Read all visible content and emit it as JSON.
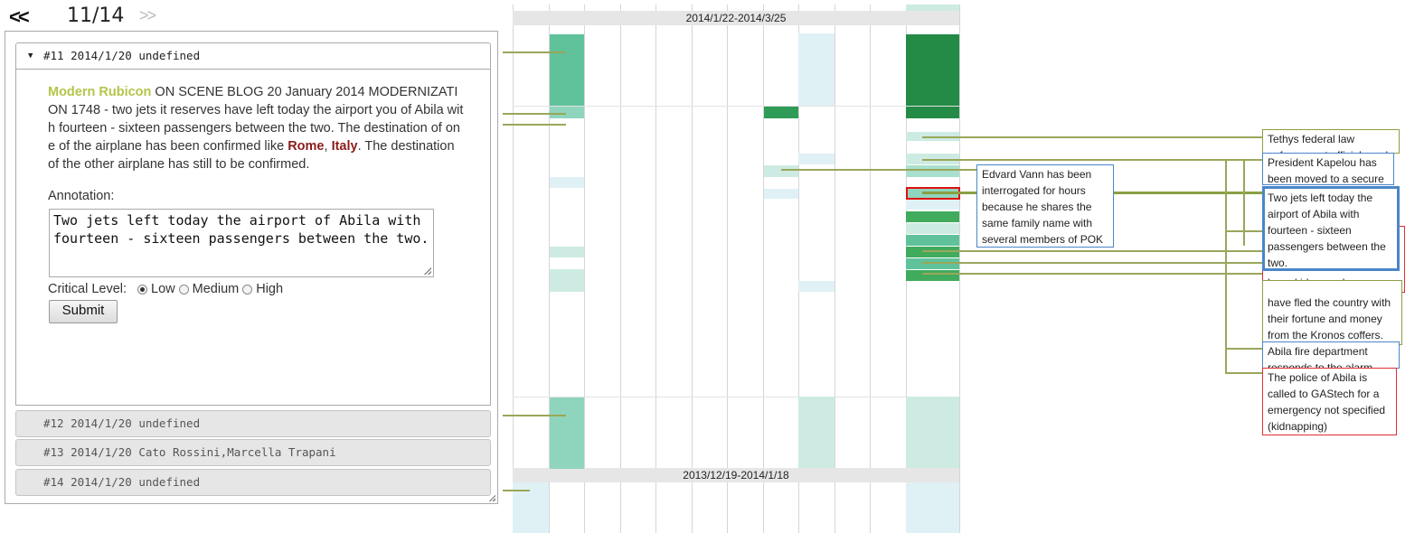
{
  "nav": {
    "prev": "<<",
    "page": "11/14",
    "next": ">>"
  },
  "accordion": {
    "active": {
      "header": "#11 2014/1/20 undefined"
    },
    "closed": [
      {
        "header": "#12 2014/1/20 undefined"
      },
      {
        "header": "#13 2014/1/20 Cato Rossini,Marcella Trapani"
      },
      {
        "header": "#14 2014/1/20 undefined"
      }
    ]
  },
  "article": {
    "source": "Modern Rubicon",
    "text_1": " ON SCENE BLOG 20 January 2014 MODERNIZATION 1748 - two jets it reserves have left today the airport you of Abila with fourteen - sixteen passengers between the two. The destination of one of the airplane has been confirmed like ",
    "loc_1": "Rome",
    "sep": ", ",
    "loc_2": "Italy",
    "text_2": ". The destination of the other airplane has still to be confirmed."
  },
  "annotation": {
    "label": "Annotation:",
    "value": "Two jets left today the airport of Abila with fourteen - sixteen passengers between the two."
  },
  "critical": {
    "label": "Critical Level:",
    "options": [
      "Low",
      "Medium",
      "High"
    ],
    "selected": "Low"
  },
  "submit_label": "Submit",
  "timeline": {
    "ranges": [
      "2014/1/22-2014/3/25",
      "2013/12/19-2014/1/18"
    ]
  },
  "colors": {
    "dark_green": "#238b45",
    "mid_green": "#41ab5d",
    "teal": "#5fc29b",
    "light_teal": "#8fd5bd",
    "pale_teal": "#cdebe3",
    "pale_blue": "#e0f1f6"
  },
  "tooltips": [
    {
      "text": "Edvard Vann has been interrogated for hours because he shares the same family name with several members of POK"
    },
    {
      "text": "Tethys federal law enforcement officials and"
    },
    {
      "text": "President Kapelou has been moved to a secure"
    },
    {
      "text": "Two jets left today the airport of Abila with fourteen - sixteen passengers between the two."
    },
    {
      "text": "been kidnapped."
    },
    {
      "text": "have fled the country with their fortune and money from the Kronos coffers."
    },
    {
      "text": "Abila fire department responds to the alarm"
    },
    {
      "text": "The police of Abila is called to GAStech for a emergency not specified (kidnapping)"
    }
  ]
}
